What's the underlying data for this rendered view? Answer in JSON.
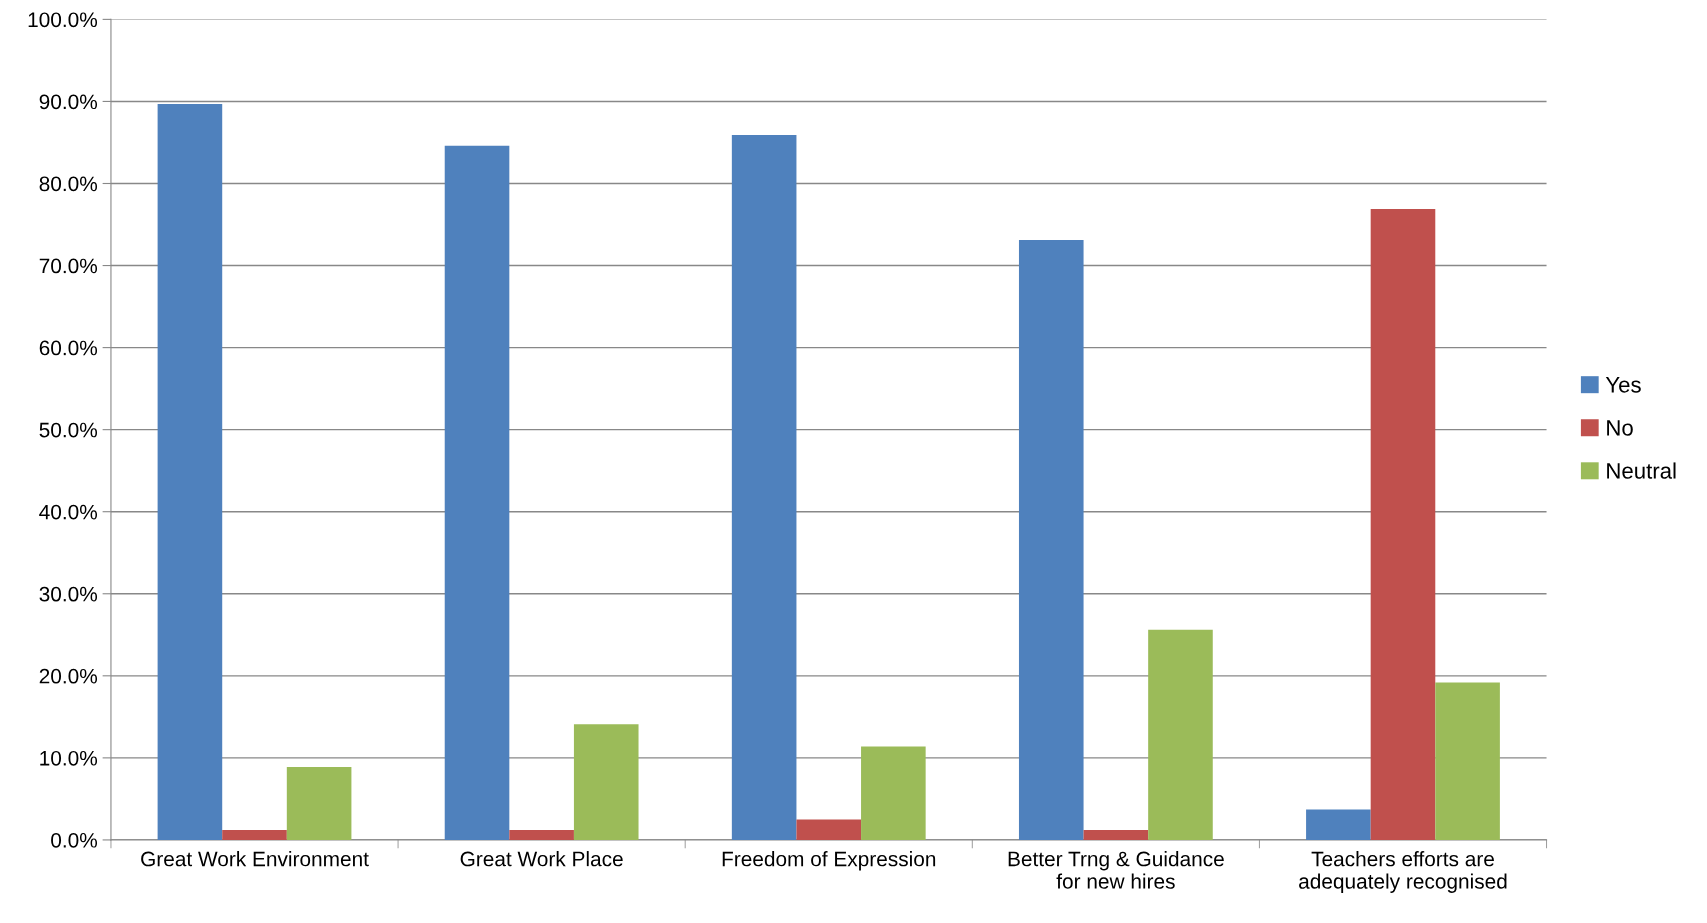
{
  "chart_data": {
    "type": "bar",
    "categories": [
      "Great Work Environment",
      "Great Work Place",
      "Freedom of Expression",
      "Better Trng & Guidance\nfor new hires",
      "Teachers efforts are\nadequately recognised"
    ],
    "series": [
      {
        "name": "Yes",
        "color": "#4f81bd",
        "values": [
          89.7,
          84.6,
          85.9,
          73.1,
          3.7
        ]
      },
      {
        "name": "No",
        "color": "#c0504d",
        "values": [
          1.2,
          1.2,
          2.5,
          1.2,
          76.9
        ]
      },
      {
        "name": "Neutral",
        "color": "#9bbb59",
        "values": [
          8.9,
          14.1,
          11.4,
          25.6,
          19.2
        ]
      }
    ],
    "ylim": [
      0,
      100
    ],
    "yticks": [
      {
        "value": 0,
        "label": "0.0%"
      },
      {
        "value": 10,
        "label": "10.0%"
      },
      {
        "value": 20,
        "label": "20.0%"
      },
      {
        "value": 30,
        "label": "30.0%"
      },
      {
        "value": 40,
        "label": "40.0%"
      },
      {
        "value": 50,
        "label": "50.0%"
      },
      {
        "value": 60,
        "label": "60.0%"
      },
      {
        "value": 70,
        "label": "70.0%"
      },
      {
        "value": 80,
        "label": "80.0%"
      },
      {
        "value": 90,
        "label": "90.0%"
      },
      {
        "value": 100,
        "label": "100.0%"
      }
    ],
    "grid": "y",
    "legend": "right"
  }
}
